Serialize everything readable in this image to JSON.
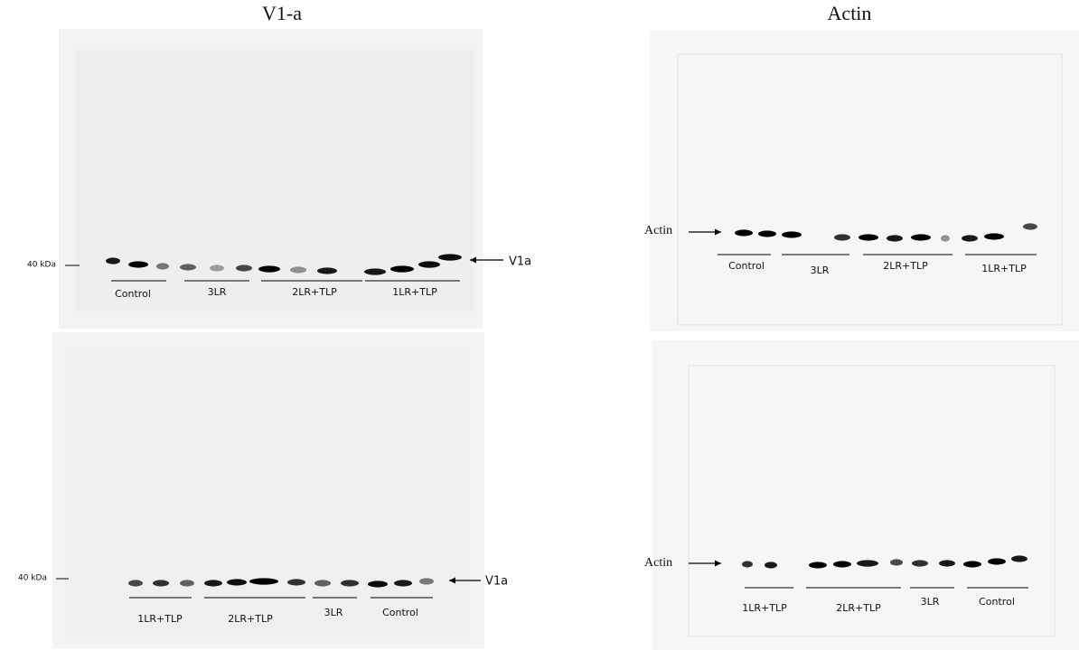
{
  "columns": [
    {
      "title": "V1-a",
      "blots": [
        {
          "marker": "40 kDa",
          "target": "V1a",
          "groups": [
            "Control",
            "3LR",
            "2LR+TLP",
            "1LR+TLP"
          ]
        },
        {
          "marker": "40 kDa",
          "target": "V1a",
          "groups": [
            "1LR+TLP",
            "2LR+TLP",
            "3LR",
            "Control"
          ]
        }
      ]
    },
    {
      "title": "Actin",
      "blots": [
        {
          "target": "Actin",
          "groups": [
            "Control",
            "3LR",
            "2LR+TLP",
            "1LR+TLP"
          ]
        },
        {
          "target": "Actin",
          "groups": [
            "1LR+TLP",
            "2LR+TLP",
            "3LR",
            "Control"
          ]
        }
      ]
    }
  ]
}
